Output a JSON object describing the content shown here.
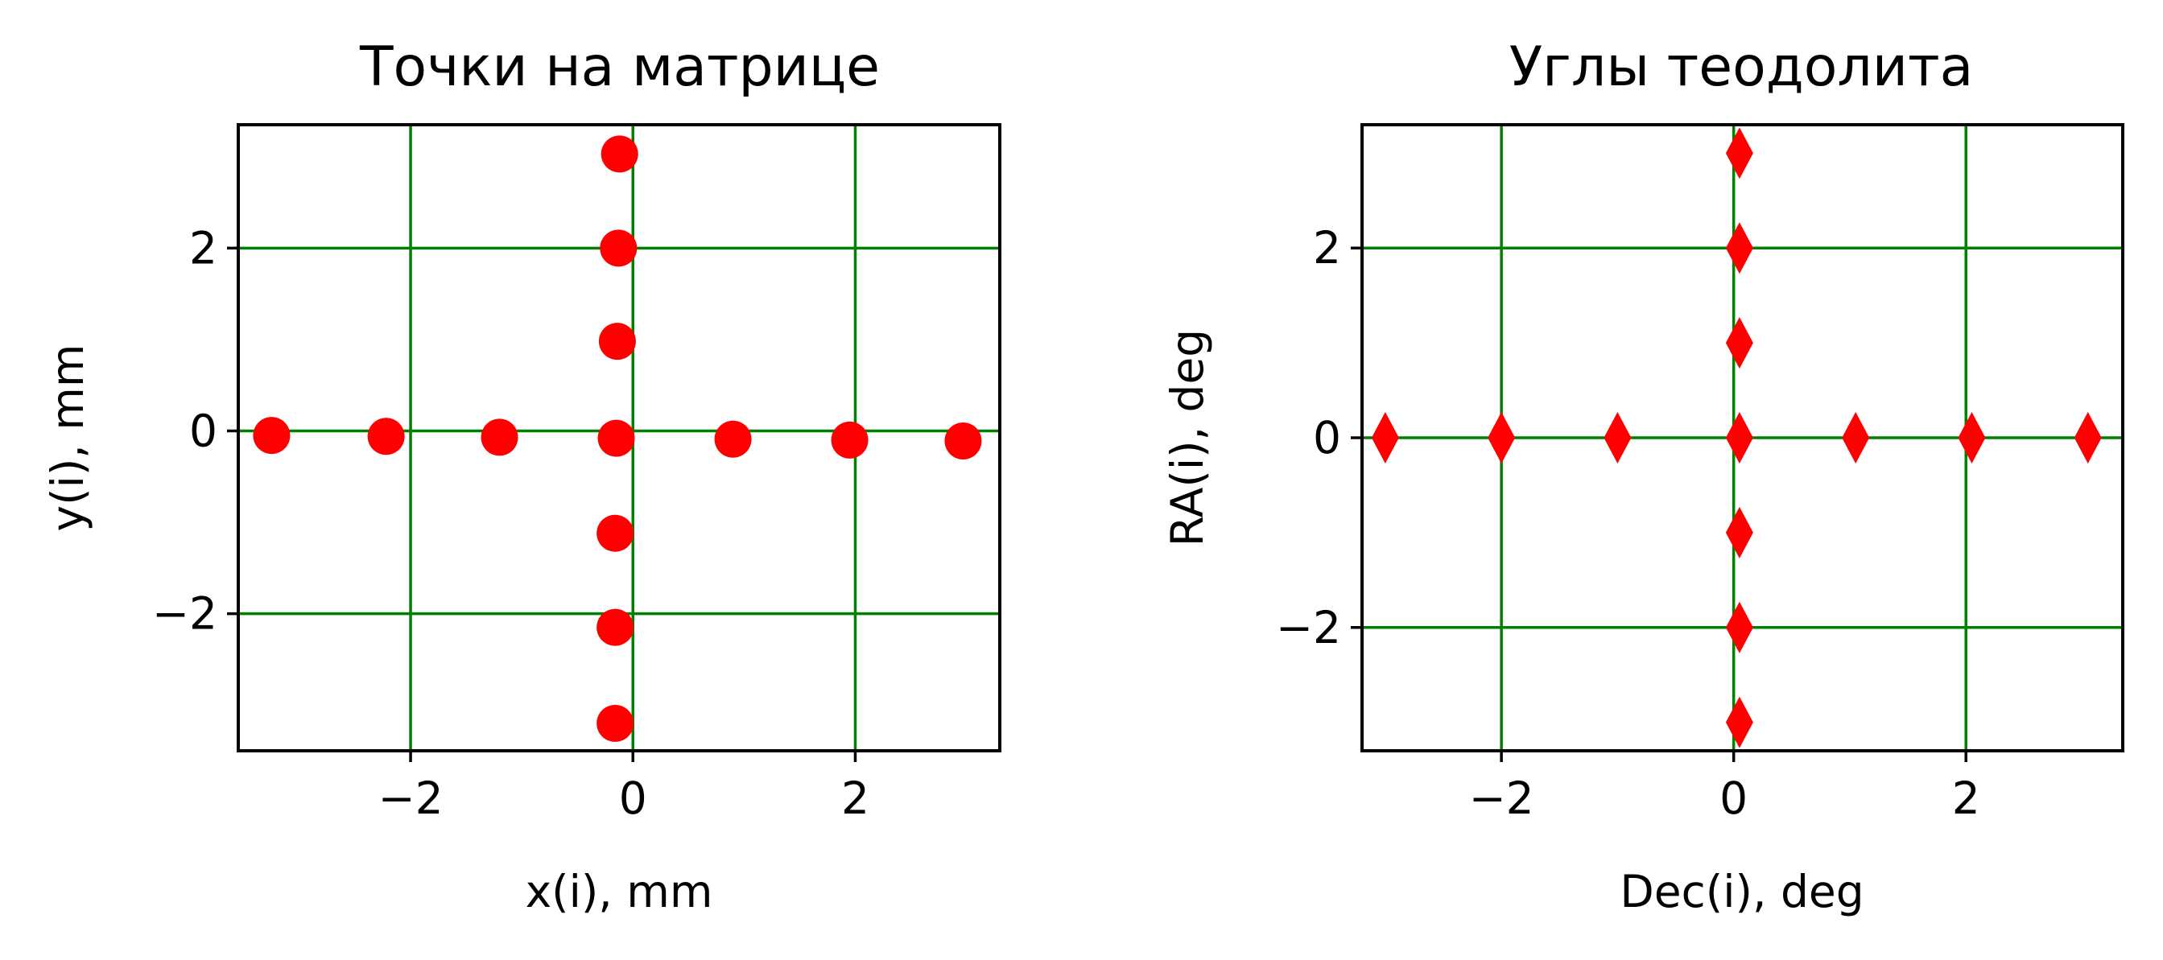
{
  "chart_data": [
    {
      "type": "scatter",
      "title": "Точки на матрице",
      "xlabel": "x(i), mm",
      "ylabel": "y(i), mm",
      "xlim": [
        -3.55,
        3.3
      ],
      "ylim": [
        -3.5,
        3.35
      ],
      "xticks": [
        -2,
        0,
        2
      ],
      "yticks": [
        -2,
        0,
        2
      ],
      "xtick_labels": [
        "−2",
        "0",
        "2"
      ],
      "ytick_labels": [
        "−2",
        "0",
        "2"
      ],
      "grid": true,
      "grid_color": "#008000",
      "marker": "circle",
      "marker_color": "#ff0000",
      "points": [
        {
          "x": -3.25,
          "y": -0.05
        },
        {
          "x": -2.22,
          "y": -0.06
        },
        {
          "x": -1.2,
          "y": -0.07
        },
        {
          "x": -0.15,
          "y": -0.08
        },
        {
          "x": 0.9,
          "y": -0.09
        },
        {
          "x": 1.95,
          "y": -0.1
        },
        {
          "x": 2.97,
          "y": -0.11
        },
        {
          "x": -0.12,
          "y": 3.03
        },
        {
          "x": -0.13,
          "y": 2.0
        },
        {
          "x": -0.14,
          "y": 0.98
        },
        {
          "x": -0.16,
          "y": -1.12
        },
        {
          "x": -0.16,
          "y": -2.15
        },
        {
          "x": -0.16,
          "y": -3.2
        }
      ]
    },
    {
      "type": "scatter",
      "title": "Углы теодолита",
      "xlabel": "Dec(i), deg",
      "ylabel": "RA(i), deg",
      "xlim": [
        -3.2,
        3.35
      ],
      "ylim": [
        -3.3,
        3.3
      ],
      "xticks": [
        -2,
        0,
        2
      ],
      "yticks": [
        -2,
        0,
        2
      ],
      "xtick_labels": [
        "−2",
        "0",
        "2"
      ],
      "ytick_labels": [
        "−2",
        "0",
        "2"
      ],
      "grid": true,
      "grid_color": "#008000",
      "marker": "diamond",
      "marker_color": "#ff0000",
      "points": [
        {
          "x": -3.0,
          "y": 0
        },
        {
          "x": -2.0,
          "y": 0
        },
        {
          "x": -1.0,
          "y": 0
        },
        {
          "x": 0.05,
          "y": 0
        },
        {
          "x": 1.05,
          "y": 0
        },
        {
          "x": 2.05,
          "y": 0
        },
        {
          "x": 3.05,
          "y": 0
        },
        {
          "x": 0.05,
          "y": 3.0
        },
        {
          "x": 0.05,
          "y": 2.0
        },
        {
          "x": 0.05,
          "y": 1.0
        },
        {
          "x": 0.05,
          "y": -1.0
        },
        {
          "x": 0.05,
          "y": -2.0
        },
        {
          "x": 0.05,
          "y": -3.0
        }
      ]
    }
  ]
}
